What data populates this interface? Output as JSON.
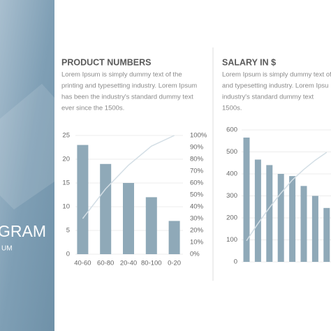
{
  "banner": {
    "title": "GRAM",
    "subtitle": "UM"
  },
  "chart_data": [
    {
      "type": "pareto",
      "title": "PRODUCT NUMBERS",
      "description": [
        "Lorem Ipsum is simply dummy text of the",
        "printing and typesetting industry. Lorem Ipsum",
        "has been the industry's standard dummy text",
        "ever since the 1500s."
      ],
      "categories": [
        "40-60",
        "60-80",
        "20-40",
        "80-100",
        "0-20"
      ],
      "series": [
        {
          "type": "bar",
          "color": "#8fa9b8",
          "values": [
            23,
            19,
            15,
            12,
            7
          ]
        },
        {
          "type": "line",
          "axis": "y2",
          "color": "#d3dee5",
          "values": [
            30,
            55,
            75,
            91,
            100
          ]
        }
      ],
      "ylim": [
        0,
        25
      ],
      "yticks": [
        0,
        5,
        10,
        15,
        20,
        25
      ],
      "y2lim": [
        0,
        100
      ],
      "y2ticks": [
        {
          "value": 0,
          "label": "0%"
        },
        {
          "value": 10,
          "label": "10%"
        },
        {
          "value": 20,
          "label": "20%"
        },
        {
          "value": 30,
          "label": "30%"
        },
        {
          "value": 40,
          "label": "40%"
        },
        {
          "value": 50,
          "label": "50%"
        },
        {
          "value": 60,
          "label": "60%"
        },
        {
          "value": 70,
          "label": "70%"
        },
        {
          "value": 80,
          "label": "80%"
        },
        {
          "value": 90,
          "label": "90%"
        },
        {
          "value": 100,
          "label": "100%"
        }
      ],
      "grid": true
    },
    {
      "type": "pareto",
      "title": "SALARY IN $",
      "description": [
        "Lorem Ipsum is simply dummy text of",
        "and typesetting industry. Lorem Ipsu",
        "industry's standard dummy text",
        "1500s."
      ],
      "categories": [
        null,
        null,
        null,
        null,
        null,
        null,
        null,
        null
      ],
      "series": [
        {
          "type": "bar",
          "color": "#8fa9b8",
          "values": [
            565,
            465,
            440,
            400,
            390,
            345,
            300,
            245
          ]
        },
        {
          "type": "line",
          "axis": "y2",
          "color": "#d3dee5",
          "values": [
            16,
            29,
            41,
            52,
            62,
            70,
            77,
            83
          ]
        }
      ],
      "ylim": [
        0,
        600
      ],
      "yticks": [
        0,
        100,
        200,
        300,
        400,
        500,
        600
      ],
      "y2lim": [
        0,
        100
      ],
      "grid": true
    }
  ]
}
